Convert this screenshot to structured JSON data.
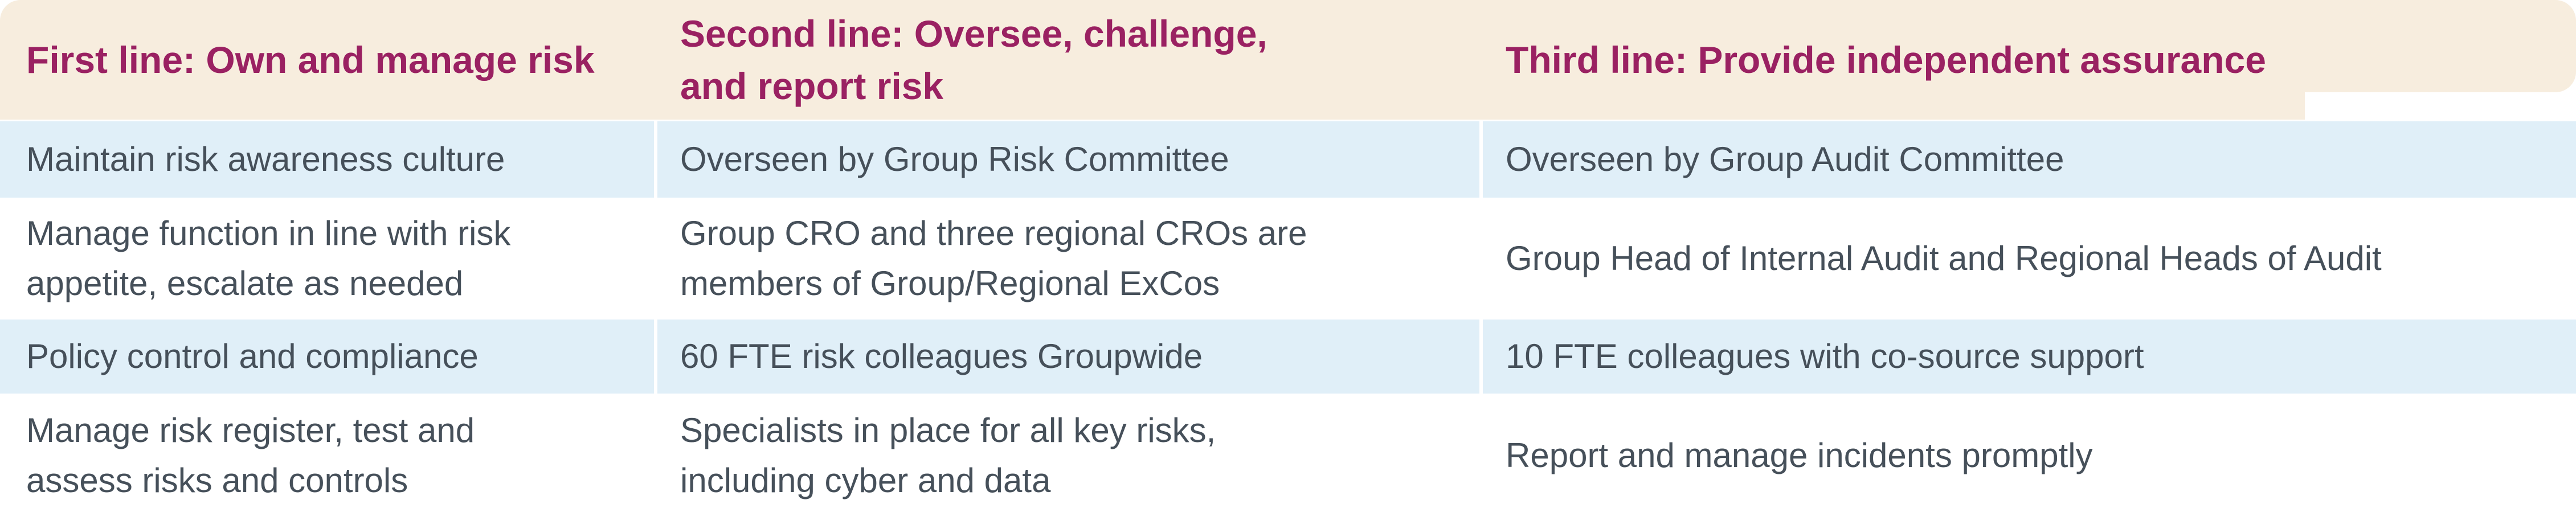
{
  "table": {
    "title_semantic": "Three lines of defense responsibilities table",
    "columns": [
      {
        "header": "First line: Own and manage risk"
      },
      {
        "header": "Second line: Oversee, challenge,\nand report risk"
      },
      {
        "header": "Third line: Provide independent assurance"
      }
    ],
    "rows": [
      [
        "Maintain risk awareness culture",
        "Overseen by Group Risk Committee",
        "Overseen by Group Audit Committee"
      ],
      [
        "Manage function in line with risk\nappetite, escalate as needed",
        "Group CRO and three regional CROs are\nmembers of Group/Regional ExCos",
        "Group Head of Internal Audit and Regional Heads of Audit"
      ],
      [
        "Policy control and compliance",
        "60 FTE risk colleagues Groupwide",
        "10 FTE colleagues with co-source support"
      ],
      [
        "Manage risk register, test and\nassess risks and controls",
        "Specialists in place for all key risks,\nincluding cyber and data",
        "Report and manage incidents promptly"
      ]
    ],
    "colors": {
      "header_background": "#f7edde",
      "header_text": "#9a2162",
      "row_alt_background": "#e0eff8",
      "row_background": "#ffffff",
      "body_text": "#46505a",
      "page_background": "#ffffff"
    }
  }
}
